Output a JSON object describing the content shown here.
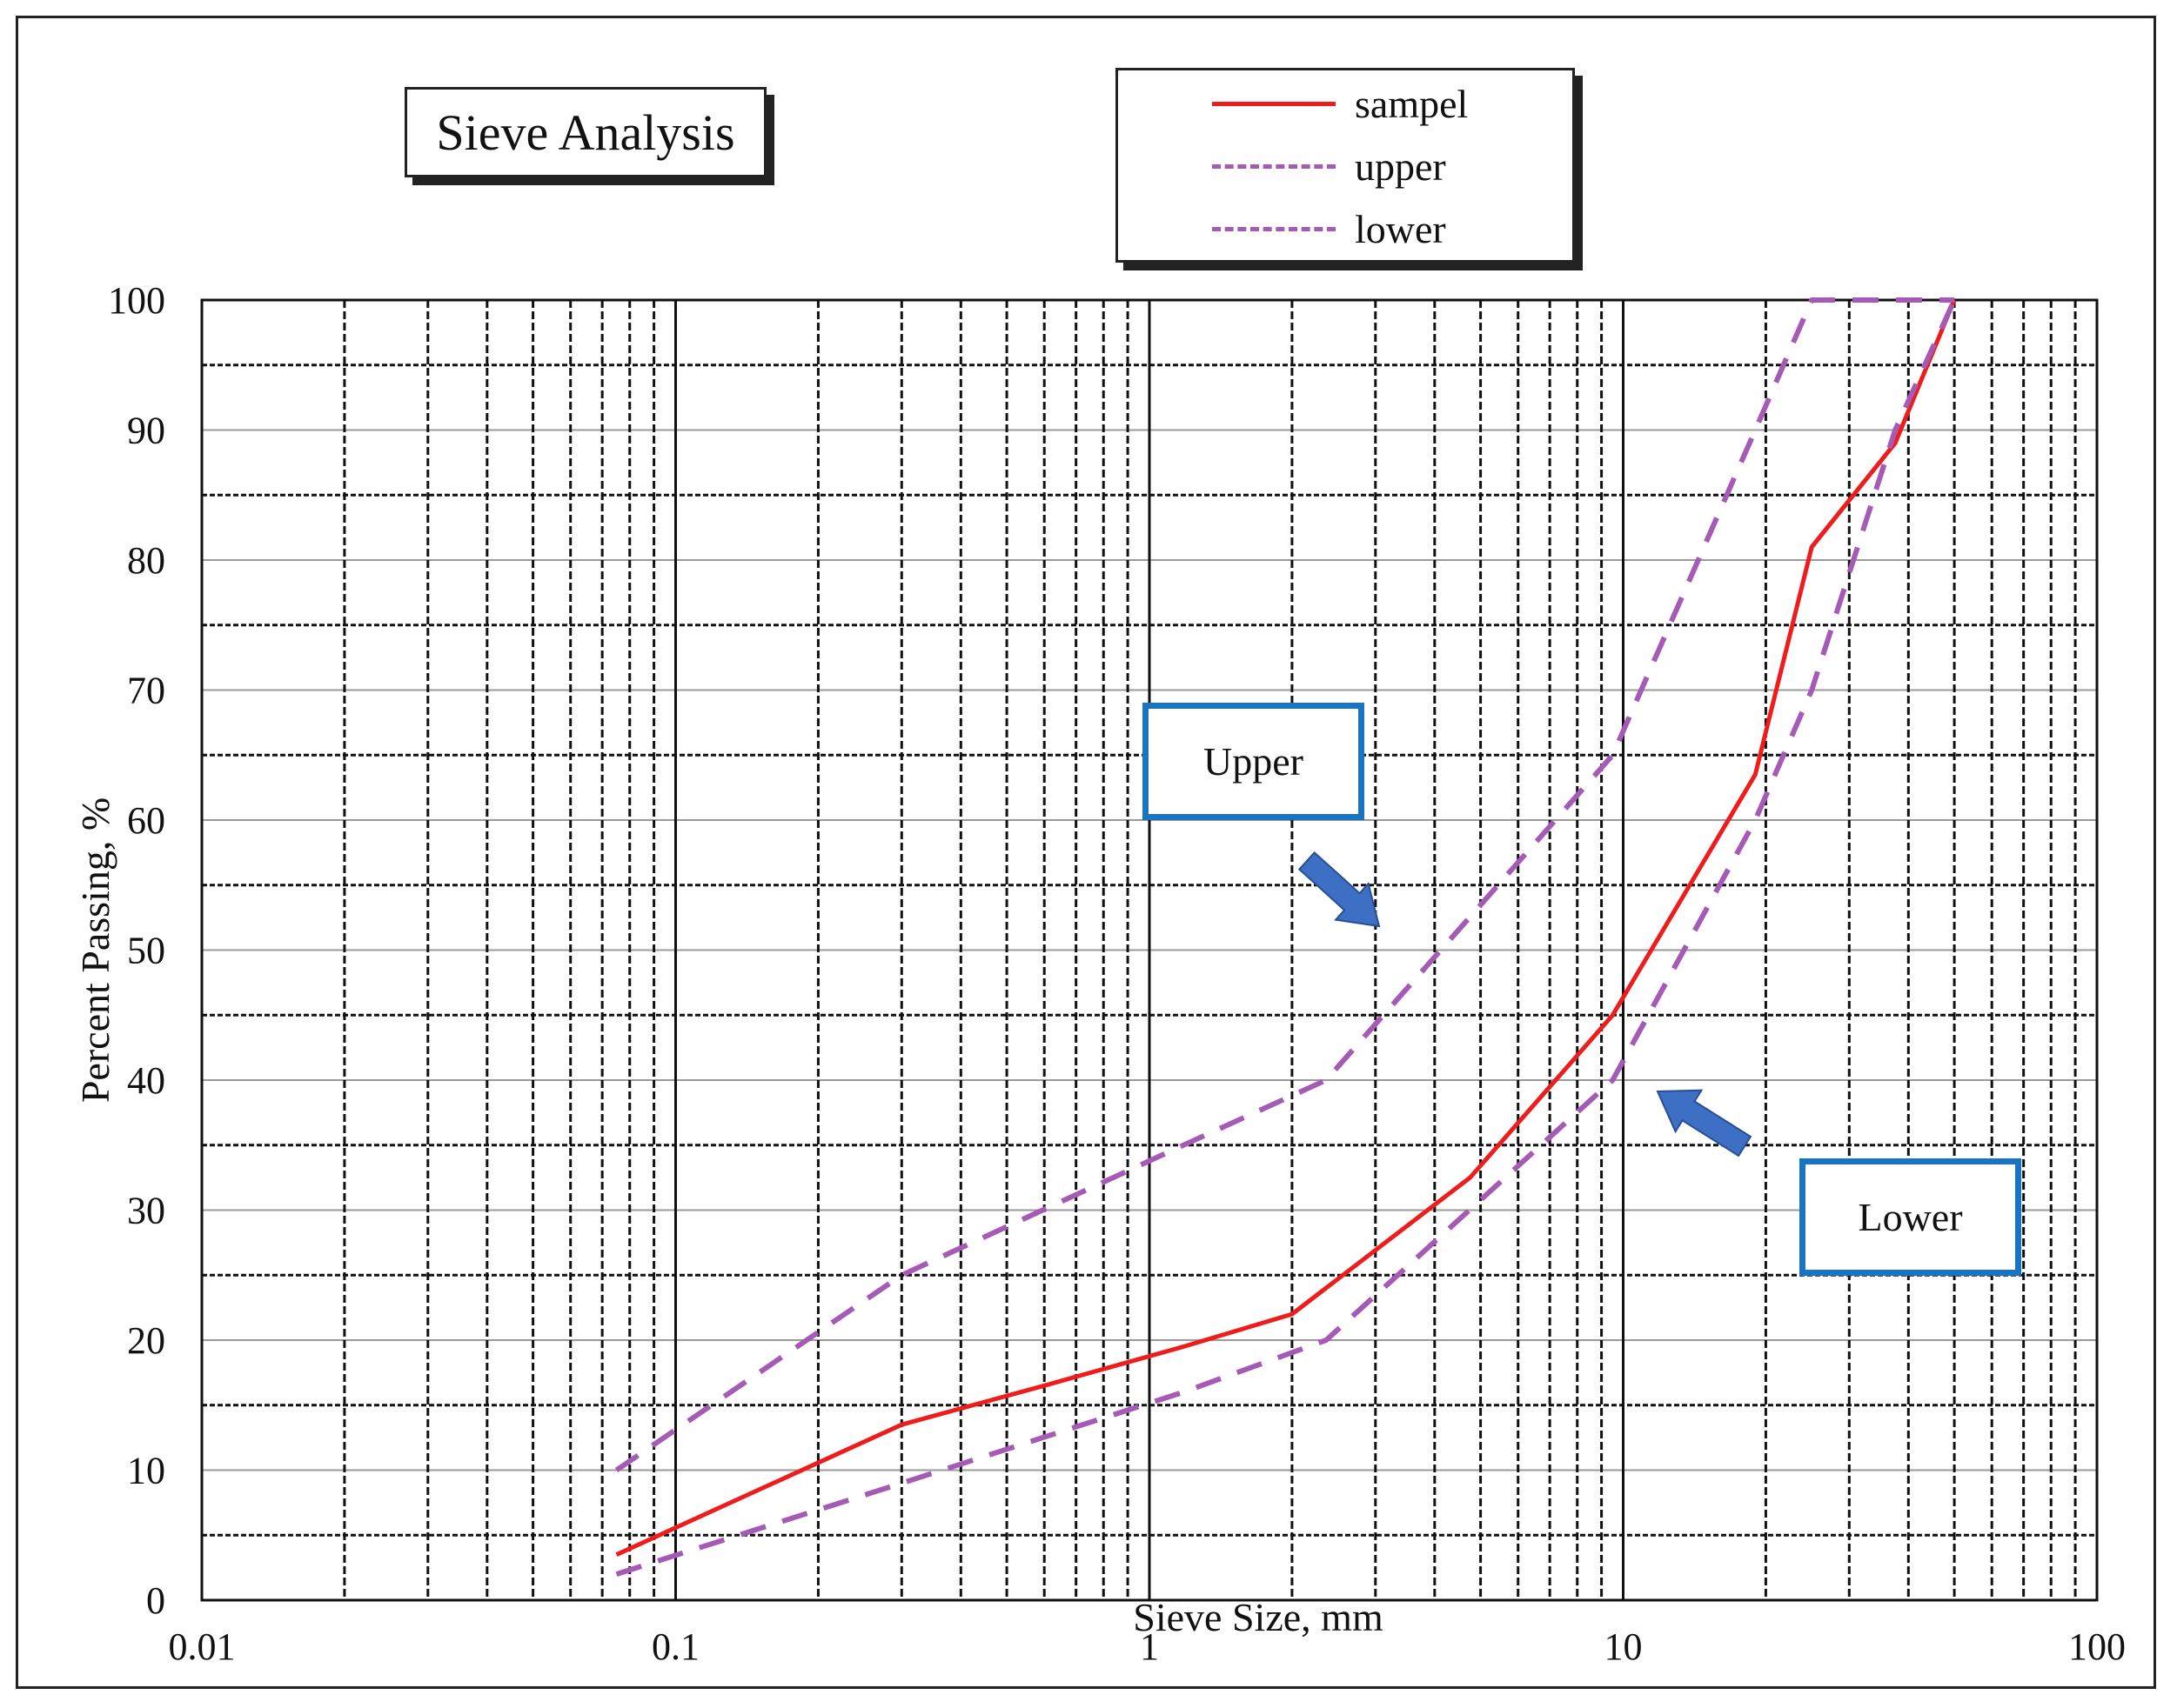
{
  "chart_data": {
    "type": "line",
    "title": "Sieve Analysis",
    "xlabel": "Sieve Size, mm",
    "ylabel": "Percent Passing, %",
    "x_scale": "log",
    "xlim": [
      0.01,
      100
    ],
    "ylim": [
      0,
      100
    ],
    "x_ticks": [
      "0.01",
      "0.1",
      "1",
      "10",
      "100"
    ],
    "y_ticks": [
      "0",
      "10",
      "20",
      "30",
      "40",
      "50",
      "60",
      "70",
      "80",
      "90",
      "100"
    ],
    "grid": true,
    "legend_position": "top-center",
    "series": [
      {
        "name": "sampel",
        "color": "#ee1c1c",
        "style": "solid",
        "x": [
          0.075,
          0.15,
          0.3,
          0.6,
          1.18,
          2.0,
          4.75,
          9.5,
          19.0,
          25.0,
          37.5,
          50.0
        ],
        "y": [
          3.5,
          8.5,
          13.5,
          16.5,
          19.5,
          22.0,
          32.5,
          45.0,
          63.5,
          81.0,
          89.0,
          100.0
        ]
      },
      {
        "name": "upper",
        "color": "#a55bb5",
        "style": "dashed",
        "x": [
          0.075,
          0.3,
          1.18,
          2.36,
          9.5,
          19.0,
          25.0,
          50.0
        ],
        "y": [
          10,
          25,
          35,
          40,
          65,
          90,
          100,
          100
        ]
      },
      {
        "name": "lower",
        "color": "#a55bb5",
        "style": "dashed",
        "x": [
          0.075,
          0.3,
          1.18,
          2.36,
          9.5,
          19.0,
          25.0,
          37.5,
          50.0
        ],
        "y": [
          2,
          9,
          16,
          20,
          40,
          60,
          70,
          90,
          100
        ]
      }
    ],
    "annotations": [
      {
        "text": "Upper",
        "x": 3.0,
        "y": 52
      },
      {
        "text": "Lower",
        "x": 10.5,
        "y": 38
      }
    ]
  }
}
